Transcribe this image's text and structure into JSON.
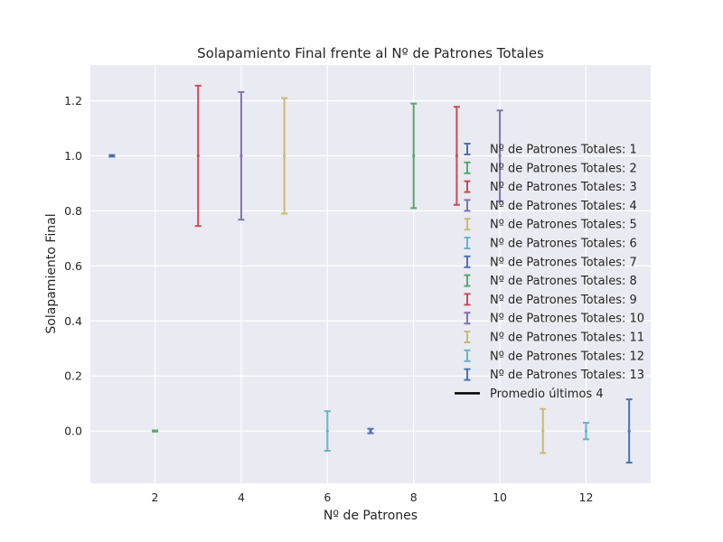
{
  "chart_data": {
    "type": "errorbar",
    "title": "Solapamiento Final frente al Nº de Patrones Totales",
    "xlabel": "Nº de Patrones",
    "ylabel": "Solapamiento Final",
    "xlim": [
      0.5,
      13.5
    ],
    "ylim": [
      -0.19,
      1.33
    ],
    "xticks": [
      2,
      4,
      6,
      8,
      10,
      12
    ],
    "yticks": [
      0.0,
      0.2,
      0.4,
      0.6,
      0.8,
      1.0,
      1.2
    ],
    "xtick_labels": [
      "2",
      "4",
      "6",
      "8",
      "10",
      "12"
    ],
    "ytick_labels": [
      "0.0",
      "0.2",
      "0.4",
      "0.6",
      "0.8",
      "1.0",
      "1.2"
    ],
    "grid": true,
    "legend_position": "right",
    "series": [
      {
        "name": "Nº de Patrones Totales: 1",
        "x": 1,
        "y": 1.0,
        "err": 0.003,
        "color": "#4c72b0"
      },
      {
        "name": "Nº de Patrones Totales: 2",
        "x": 2,
        "y": 0.0,
        "err": 0.002,
        "color": "#55a868"
      },
      {
        "name": "Nº de Patrones Totales: 3",
        "x": 3,
        "y": 1.0,
        "err": 0.255,
        "color": "#c44e52"
      },
      {
        "name": "Nº de Patrones Totales: 4",
        "x": 4,
        "y": 1.0,
        "err": 0.232,
        "color": "#8172b2"
      },
      {
        "name": "Nº de Patrones Totales: 5",
        "x": 5,
        "y": 1.0,
        "err": 0.21,
        "color": "#ccb974"
      },
      {
        "name": "Nº de Patrones Totales: 6",
        "x": 6,
        "y": 0.0,
        "err": 0.072,
        "color": "#64b5cd"
      },
      {
        "name": "Nº de Patrones Totales: 7",
        "x": 7,
        "y": 0.0,
        "err": 0.008,
        "color": "#4c72b0"
      },
      {
        "name": "Nº de Patrones Totales: 8",
        "x": 8,
        "y": 1.0,
        "err": 0.19,
        "color": "#55a868"
      },
      {
        "name": "Nº de Patrones Totales: 9",
        "x": 9,
        "y": 1.0,
        "err": 0.178,
        "color": "#c44e52"
      },
      {
        "name": "Nº de Patrones Totales: 10",
        "x": 10,
        "y": 1.0,
        "err": 0.165,
        "color": "#8172b2"
      },
      {
        "name": "Nº de Patrones Totales: 11",
        "x": 11,
        "y": 0.0,
        "err": 0.08,
        "color": "#ccb974"
      },
      {
        "name": "Nº de Patrones Totales: 12",
        "x": 12,
        "y": 0.0,
        "err": 0.03,
        "color": "#64b5cd"
      },
      {
        "name": "Nº de Patrones Totales: 13",
        "x": 13,
        "y": 0.0,
        "err": 0.115,
        "color": "#4c72b0"
      }
    ],
    "average_line": {
      "name": "Promedio últimos 4",
      "color": "#000000"
    },
    "colors": {
      "background": "#eaeaf2",
      "grid": "#ffffff",
      "text": "#262626"
    }
  }
}
